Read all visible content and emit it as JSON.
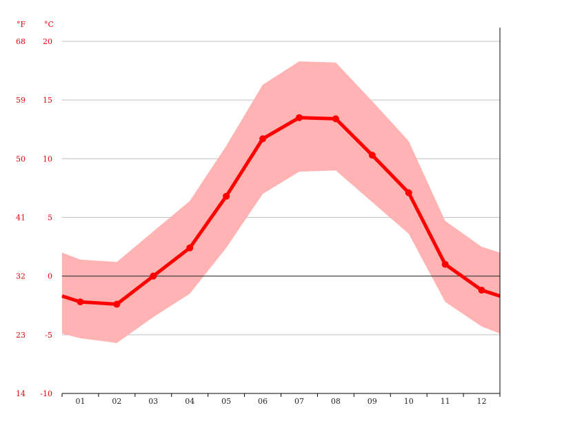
{
  "chart_data": {
    "type": "line",
    "title": "",
    "xlabel": "",
    "ylabel": "",
    "units": {
      "fahrenheit": "°F",
      "celsius": "°C"
    },
    "y_ticks_celsius": [
      "20",
      "15",
      "10",
      "5",
      "0",
      "-5",
      "-10"
    ],
    "y_ticks_fahrenheit": [
      "68",
      "59",
      "50",
      "41",
      "32",
      "23",
      "14"
    ],
    "ylim": [
      -10,
      20
    ],
    "categories": [
      "01",
      "02",
      "03",
      "04",
      "05",
      "06",
      "07",
      "08",
      "09",
      "10",
      "11",
      "12"
    ],
    "series": [
      {
        "values": [
          -2.2,
          -2.4,
          0.0,
          2.4,
          6.8,
          11.7,
          13.5,
          13.4,
          10.3,
          7.1,
          1.0,
          -1.2
        ]
      }
    ],
    "range_band": {
      "max": [
        1.4,
        1.2,
        3.8,
        6.4,
        11.1,
        16.3,
        18.3,
        18.2,
        14.9,
        11.5,
        4.7,
        2.5
      ],
      "min": [
        -5.3,
        -5.7,
        -3.5,
        -1.5,
        2.4,
        7.0,
        8.9,
        9.0,
        6.3,
        3.6,
        -2.2,
        -4.3
      ]
    },
    "edge_values": {
      "left": {
        "mean": -1.7,
        "max": 2.0,
        "min": -4.9
      },
      "right": {
        "mean": -1.7,
        "max": 2.0,
        "min": -4.9
      }
    },
    "colors": {
      "line": "#ff0000",
      "band": "#ffb3b3",
      "grid": "#bfbfbf",
      "zero_line": "#333333",
      "tick_label": "#e8000b"
    },
    "grid": true
  }
}
